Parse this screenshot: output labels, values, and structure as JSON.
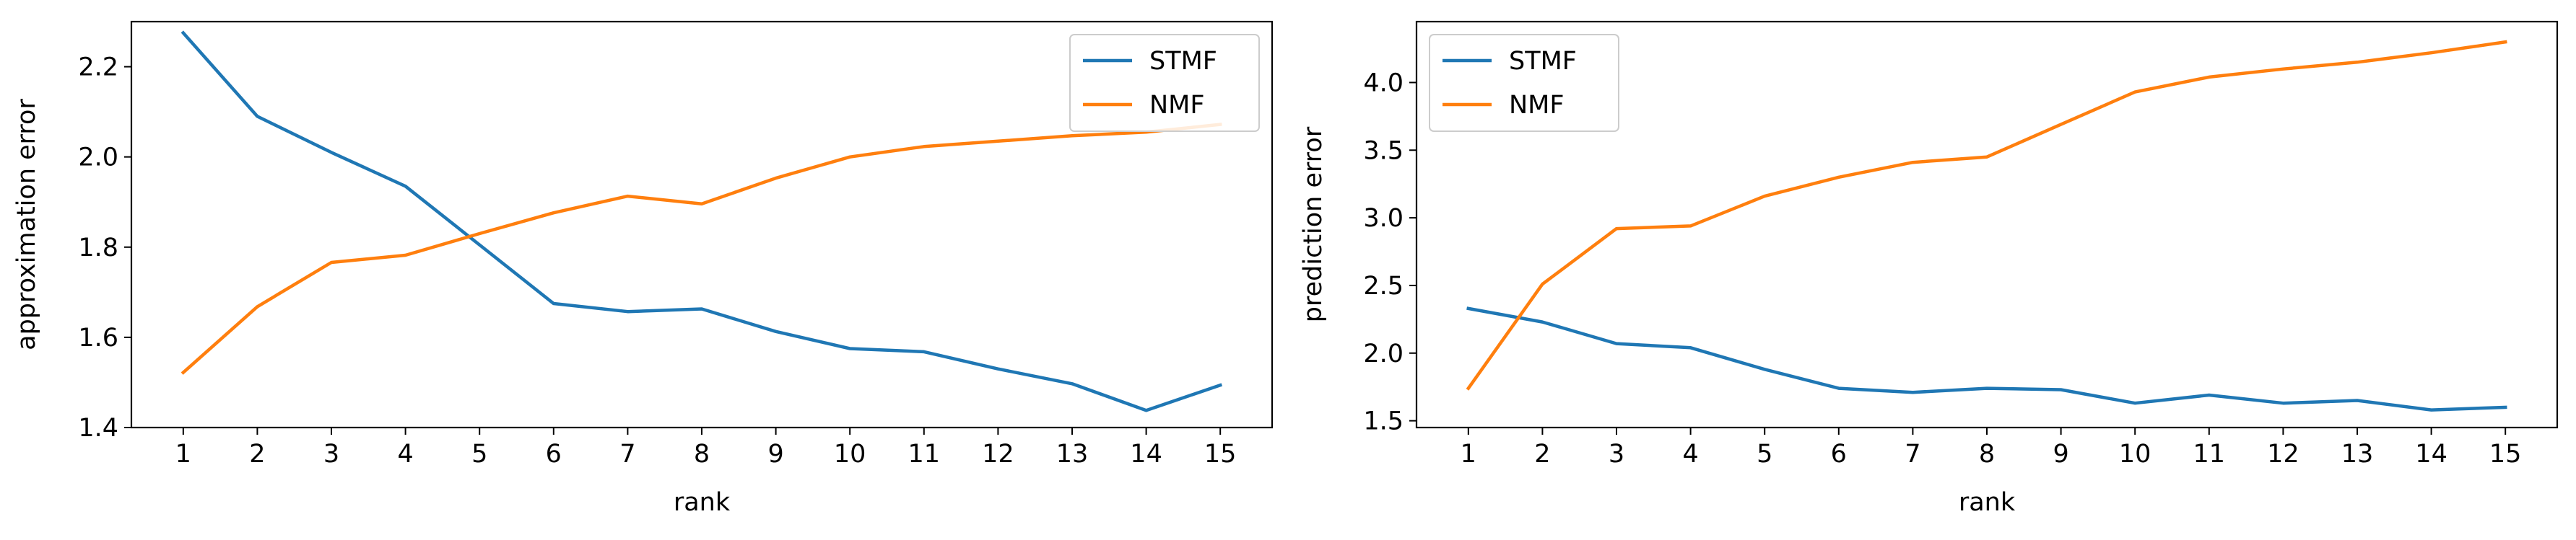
{
  "colors": {
    "stmf": "#1f77b4",
    "nmf": "#ff7f0e",
    "legend_border": "#cccccc"
  },
  "chart_data": [
    {
      "type": "line",
      "xlabel": "rank",
      "ylabel": "approximation error",
      "x": [
        1,
        2,
        3,
        4,
        5,
        6,
        7,
        8,
        9,
        10,
        11,
        12,
        13,
        14,
        15
      ],
      "xlim": [
        0.3,
        15.7
      ],
      "ylim": [
        1.4,
        2.3
      ],
      "yticks": [
        1.4,
        1.6,
        1.8,
        2.0,
        2.2
      ],
      "ytick_labels": [
        "1.4",
        "1.6",
        "1.8",
        "2.0",
        "2.2"
      ],
      "legend": "top-right",
      "grid": false,
      "series": [
        {
          "name": "STMF",
          "color": "stmf",
          "values": [
            2.275,
            2.09,
            2.01,
            1.935,
            1.805,
            1.675,
            1.657,
            1.663,
            1.613,
            1.575,
            1.568,
            1.53,
            1.497,
            1.438,
            1.494
          ]
        },
        {
          "name": "NMF",
          "color": "nmf",
          "values": [
            1.522,
            1.668,
            1.766,
            1.782,
            1.83,
            1.876,
            1.913,
            1.896,
            1.953,
            2.0,
            2.023,
            2.035,
            2.047,
            2.055,
            2.072
          ]
        }
      ]
    },
    {
      "type": "line",
      "xlabel": "rank",
      "ylabel": "prediction error",
      "x": [
        1,
        2,
        3,
        4,
        5,
        6,
        7,
        8,
        9,
        10,
        11,
        12,
        13,
        14,
        15
      ],
      "xlim": [
        0.3,
        15.7
      ],
      "ylim": [
        1.45,
        4.45
      ],
      "yticks": [
        1.5,
        2.0,
        2.5,
        3.0,
        3.5,
        4.0
      ],
      "ytick_labels": [
        "1.5",
        "2.0",
        "2.5",
        "3.0",
        "3.5",
        "4.0"
      ],
      "legend": "top-left",
      "grid": false,
      "series": [
        {
          "name": "STMF",
          "color": "stmf",
          "values": [
            2.33,
            2.23,
            2.07,
            2.04,
            1.88,
            1.74,
            1.71,
            1.74,
            1.73,
            1.63,
            1.69,
            1.63,
            1.65,
            1.58,
            1.6
          ]
        },
        {
          "name": "NMF",
          "color": "nmf",
          "values": [
            1.74,
            2.51,
            2.92,
            2.94,
            3.16,
            3.3,
            3.41,
            3.45,
            3.69,
            3.93,
            4.04,
            4.1,
            4.15,
            4.22,
            4.3
          ]
        }
      ]
    }
  ]
}
